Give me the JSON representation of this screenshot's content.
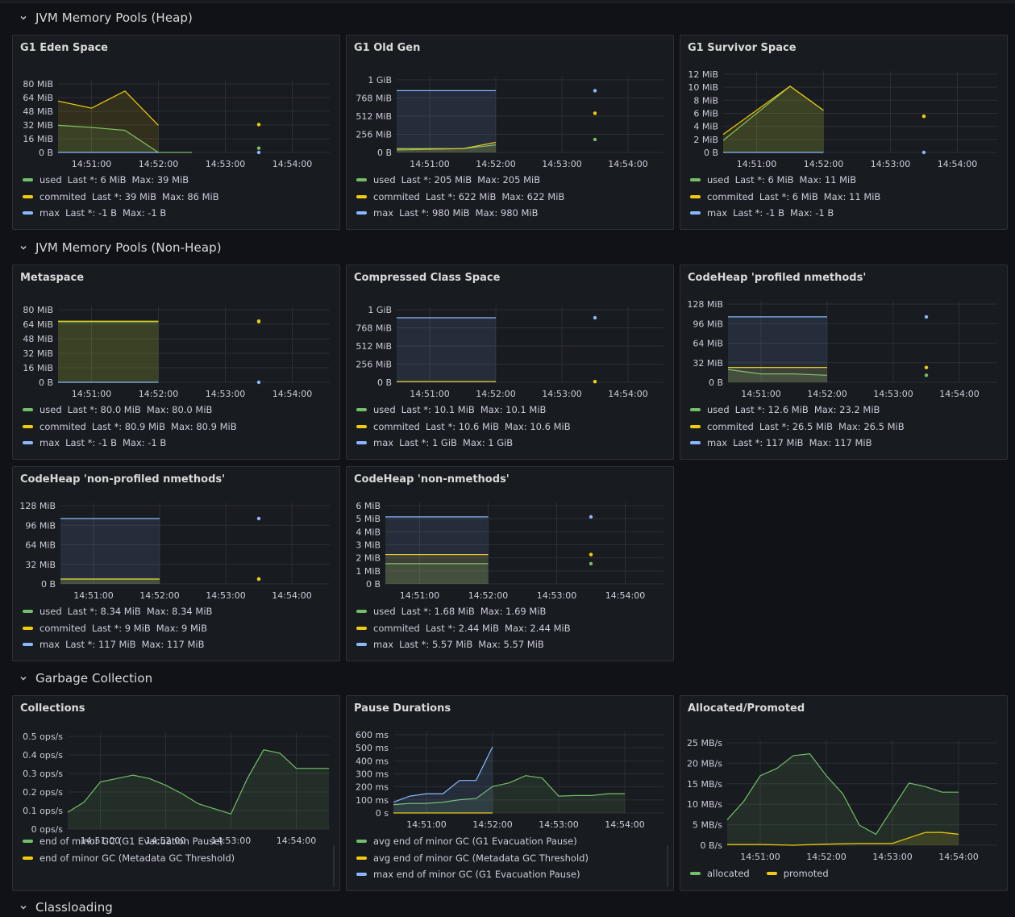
{
  "colors": {
    "used": "#73bf69",
    "commited": "#f2cc0c",
    "max": "#8ab8ff",
    "grid": "#2b2e33",
    "axis": "#ccccdc",
    "bg": "#181b1f"
  },
  "rows": {
    "heap": "JVM Memory Pools (Heap)",
    "nonheap": "JVM Memory Pools (Non-Heap)",
    "gc": "Garbage Collection",
    "classloading": "Classloading"
  },
  "panels": [
    {
      "id": "eden",
      "title": "G1 Eden Space",
      "yticks": [
        "80 MiB",
        "64 MiB",
        "48 MiB",
        "32 MiB",
        "16 MiB",
        "0 B"
      ],
      "legend": [
        {
          "name": "used",
          "stat": "Last *: 6 MiB",
          "max": "Max: 39 MiB"
        },
        {
          "name": "commited",
          "stat": "Last *: 39 MiB",
          "max": "Max: 86 MiB"
        },
        {
          "name": "max",
          "stat": "Last *: -1 B",
          "max": "Max: -1 B"
        }
      ]
    },
    {
      "id": "oldgen",
      "title": "G1 Old Gen",
      "yticks": [
        "1 GiB",
        "768 MiB",
        "512 MiB",
        "256 MiB",
        "0 B"
      ],
      "legend": [
        {
          "name": "used",
          "stat": "Last *: 205 MiB",
          "max": "Max: 205 MiB"
        },
        {
          "name": "commited",
          "stat": "Last *: 622 MiB",
          "max": "Max: 622 MiB"
        },
        {
          "name": "max",
          "stat": "Last *: 980 MiB",
          "max": "Max: 980 MiB"
        }
      ]
    },
    {
      "id": "survivor",
      "title": "G1 Survivor Space",
      "yticks": [
        "12 MiB",
        "10 MiB",
        "8 MiB",
        "6 MiB",
        "4 MiB",
        "2 MiB",
        "0 B"
      ],
      "legend": [
        {
          "name": "used",
          "stat": "Last *: 6 MiB",
          "max": "Max: 11 MiB"
        },
        {
          "name": "commited",
          "stat": "Last *: 6 MiB",
          "max": "Max: 11 MiB"
        },
        {
          "name": "max",
          "stat": "Last *: -1 B",
          "max": "Max: -1 B"
        }
      ]
    },
    {
      "id": "metaspace",
      "title": "Metaspace",
      "yticks": [
        "80 MiB",
        "64 MiB",
        "48 MiB",
        "32 MiB",
        "16 MiB",
        "0 B"
      ],
      "legend": [
        {
          "name": "used",
          "stat": "Last *: 80.0 MiB",
          "max": "Max: 80.0 MiB"
        },
        {
          "name": "commited",
          "stat": "Last *: 80.9 MiB",
          "max": "Max: 80.9 MiB"
        },
        {
          "name": "max",
          "stat": "Last *: -1 B",
          "max": "Max: -1 B"
        }
      ]
    },
    {
      "id": "ccs",
      "title": "Compressed Class Space",
      "yticks": [
        "1 GiB",
        "768 MiB",
        "512 MiB",
        "256 MiB",
        "0 B"
      ],
      "legend": [
        {
          "name": "used",
          "stat": "Last *: 10.1 MiB",
          "max": "Max: 10.1 MiB"
        },
        {
          "name": "commited",
          "stat": "Last *: 10.6 MiB",
          "max": "Max: 10.6 MiB"
        },
        {
          "name": "max",
          "stat": "Last *: 1 GiB",
          "max": "Max: 1 GiB"
        }
      ]
    },
    {
      "id": "profiled",
      "title": "CodeHeap 'profiled nmethods'",
      "yticks": [
        "128 MiB",
        "96 MiB",
        "64 MiB",
        "32 MiB",
        "0 B"
      ],
      "legend": [
        {
          "name": "used",
          "stat": "Last *: 12.6 MiB",
          "max": "Max: 23.2 MiB"
        },
        {
          "name": "commited",
          "stat": "Last *: 26.5 MiB",
          "max": "Max: 26.5 MiB"
        },
        {
          "name": "max",
          "stat": "Last *: 117 MiB",
          "max": "Max: 117 MiB"
        }
      ]
    },
    {
      "id": "nonprofiled",
      "title": "CodeHeap 'non-profiled nmethods'",
      "yticks": [
        "128 MiB",
        "96 MiB",
        "64 MiB",
        "32 MiB",
        "0 B"
      ],
      "legend": [
        {
          "name": "used",
          "stat": "Last *: 8.34 MiB",
          "max": "Max: 8.34 MiB"
        },
        {
          "name": "commited",
          "stat": "Last *: 9 MiB",
          "max": "Max: 9 MiB"
        },
        {
          "name": "max",
          "stat": "Last *: 117 MiB",
          "max": "Max: 117 MiB"
        }
      ]
    },
    {
      "id": "nonnmethods",
      "title": "CodeHeap 'non-nmethods'",
      "yticks": [
        "6 MiB",
        "5 MiB",
        "4 MiB",
        "3 MiB",
        "2 MiB",
        "1 MiB",
        "0 B"
      ],
      "legend": [
        {
          "name": "used",
          "stat": "Last *: 1.68 MiB",
          "max": "Max: 1.69 MiB"
        },
        {
          "name": "commited",
          "stat": "Last *: 2.44 MiB",
          "max": "Max: 2.44 MiB"
        },
        {
          "name": "max",
          "stat": "Last *: 5.57 MiB",
          "max": "Max: 5.57 MiB"
        }
      ]
    },
    {
      "id": "collections",
      "title": "Collections",
      "yticks": [
        "0.5 ops/s",
        "0.4 ops/s",
        "0.3 ops/s",
        "0.2 ops/s",
        "0.1 ops/s",
        "0 ops/s"
      ],
      "legend": [
        {
          "name": "end of minor GC (G1 Evacuation Pause)"
        },
        {
          "name": "end of minor GC (Metadata GC Threshold)"
        }
      ]
    },
    {
      "id": "pause",
      "title": "Pause Durations",
      "yticks": [
        "600 ms",
        "500 ms",
        "400 ms",
        "300 ms",
        "200 ms",
        "100 ms",
        "0 s"
      ],
      "legend": [
        {
          "name": "avg end of minor GC (G1 Evacuation Pause)"
        },
        {
          "name": "avg end of minor GC (Metadata GC Threshold)"
        },
        {
          "name": "max end of minor GC (G1 Evacuation Pause)"
        }
      ]
    },
    {
      "id": "allocated",
      "title": "Allocated/Promoted",
      "yticks": [
        "25 MB/s",
        "20 MB/s",
        "15 MB/s",
        "10 MB/s",
        "5 MB/s",
        "0 B/s"
      ],
      "legend": [
        {
          "name": "allocated"
        },
        {
          "name": "promoted"
        }
      ]
    }
  ],
  "xticks": [
    "14:51:00",
    "14:52:00",
    "14:53:00",
    "14:54:00"
  ],
  "chart_data": [
    {
      "id": "eden",
      "type": "line",
      "x_minutes": [
        0,
        0.5,
        1,
        1.5,
        2,
        3
      ],
      "ylim": [
        0,
        96
      ],
      "series": [
        {
          "name": "used",
          "x": [
            0,
            0.5,
            1,
            1.5,
            2,
            3
          ],
          "values": [
            38,
            35,
            31,
            0,
            0,
            6
          ]
        },
        {
          "name": "commited",
          "x": [
            0,
            0.5,
            1,
            1.5,
            3
          ],
          "values": [
            72,
            62,
            86,
            38,
            39
          ]
        },
        {
          "name": "max",
          "x": [
            0,
            1.5,
            3
          ],
          "values": [
            0,
            0,
            0
          ]
        }
      ]
    },
    {
      "id": "oldgen",
      "type": "line",
      "ylim": [
        0,
        1152
      ],
      "series": [
        {
          "name": "used",
          "x": [
            0,
            1,
            1.5,
            3
          ],
          "values": [
            40,
            60,
            120,
            205
          ]
        },
        {
          "name": "commited",
          "x": [
            0,
            1,
            1.5,
            3
          ],
          "values": [
            60,
            60,
            160,
            622
          ]
        },
        {
          "name": "max",
          "x": [
            0,
            1.5,
            3
          ],
          "values": [
            980,
            980,
            980
          ]
        }
      ]
    },
    {
      "id": "survivor",
      "type": "line",
      "ylim": [
        0,
        13
      ],
      "series": [
        {
          "name": "used",
          "x": [
            0,
            1,
            1.5,
            3
          ],
          "values": [
            2,
            11,
            7,
            6
          ]
        },
        {
          "name": "commited",
          "x": [
            0,
            1,
            1.5,
            3
          ],
          "values": [
            3,
            11,
            7,
            6
          ]
        },
        {
          "name": "max",
          "x": [
            0,
            1.5,
            3
          ],
          "values": [
            0,
            0,
            0
          ]
        }
      ]
    },
    {
      "id": "metaspace",
      "type": "line",
      "ylim": [
        0,
        96
      ],
      "series": [
        {
          "name": "used",
          "x": [
            0,
            1.5,
            3
          ],
          "values": [
            80,
            80,
            80
          ]
        },
        {
          "name": "commited",
          "x": [
            0,
            1.5,
            3
          ],
          "values": [
            80.9,
            80.9,
            80.9
          ]
        },
        {
          "name": "max",
          "x": [
            0,
            1.5,
            3
          ],
          "values": [
            0,
            0,
            0
          ]
        }
      ]
    },
    {
      "id": "ccs",
      "type": "line",
      "ylim": [
        0,
        1152
      ],
      "series": [
        {
          "name": "used",
          "x": [
            0,
            1.5,
            3
          ],
          "values": [
            10.1,
            10.1,
            10.1
          ]
        },
        {
          "name": "commited",
          "x": [
            0,
            1.5,
            3
          ],
          "values": [
            10.6,
            10.6,
            10.6
          ]
        },
        {
          "name": "max",
          "x": [
            0,
            1.5,
            3
          ],
          "values": [
            1024,
            1024,
            1024
          ]
        }
      ]
    },
    {
      "id": "profiled",
      "type": "line",
      "ylim": [
        0,
        140
      ],
      "series": [
        {
          "name": "used",
          "x": [
            0,
            0.5,
            1,
            1.5,
            3
          ],
          "values": [
            23,
            15,
            15,
            12.6,
            12.6
          ]
        },
        {
          "name": "commited",
          "x": [
            0,
            1.5,
            3
          ],
          "values": [
            26.5,
            26.5,
            26.5
          ]
        },
        {
          "name": "max",
          "x": [
            0,
            1.5,
            3
          ],
          "values": [
            117,
            117,
            117
          ]
        }
      ]
    },
    {
      "id": "nonprofiled",
      "type": "line",
      "ylim": [
        0,
        140
      ],
      "series": [
        {
          "name": "used",
          "x": [
            0,
            1.5,
            3
          ],
          "values": [
            8.34,
            8.34,
            8.34
          ]
        },
        {
          "name": "commited",
          "x": [
            0,
            1.5,
            3
          ],
          "values": [
            9,
            9,
            9
          ]
        },
        {
          "name": "max",
          "x": [
            0,
            1.5,
            3
          ],
          "values": [
            117,
            117,
            117
          ]
        }
      ]
    },
    {
      "id": "nonnmethods",
      "type": "line",
      "ylim": [
        0,
        6.5
      ],
      "series": [
        {
          "name": "used",
          "x": [
            0,
            1.5,
            3
          ],
          "values": [
            1.68,
            1.68,
            1.68
          ]
        },
        {
          "name": "commited",
          "x": [
            0,
            1.5,
            3
          ],
          "values": [
            2.44,
            2.44,
            2.44
          ]
        },
        {
          "name": "max",
          "x": [
            0,
            1.5,
            3
          ],
          "values": [
            5.57,
            5.57,
            5.57
          ]
        }
      ]
    },
    {
      "id": "collections",
      "type": "line",
      "ylim": [
        0,
        0.55
      ],
      "series": [
        {
          "name": "end of minor GC (G1 Evacuation Pause)",
          "x": [
            0,
            0.25,
            0.5,
            0.75,
            1,
            1.25,
            1.5,
            1.75,
            2,
            2.25,
            2.5,
            2.75,
            3,
            3.25,
            3.5,
            3.75,
            4
          ],
          "values": [
            0.1,
            0.16,
            0.28,
            0.3,
            0.32,
            0.3,
            0.26,
            0.21,
            0.15,
            0.12,
            0.09,
            0.3,
            0.47,
            0.45,
            0.36,
            0.36,
            0.36
          ]
        },
        {
          "name": "end of minor GC (Metadata GC Threshold)",
          "x": [],
          "values": []
        }
      ]
    },
    {
      "id": "pause",
      "type": "line",
      "ylim": [
        0,
        650
      ],
      "series": [
        {
          "name": "avg end of minor GC (G1 Evacuation Pause)",
          "x": [
            0,
            0.25,
            0.5,
            0.75,
            1,
            1.25,
            1.5,
            1.75,
            2,
            2.25,
            2.5,
            2.75,
            3,
            3.25,
            3.5
          ],
          "values": [
            70,
            80,
            80,
            90,
            110,
            120,
            220,
            250,
            310,
            290,
            140,
            145,
            145,
            160,
            160
          ]
        },
        {
          "name": "avg end of minor GC (Metadata GC Threshold)",
          "x": [
            0,
            1.5
          ],
          "values": [
            0,
            0
          ]
        },
        {
          "name": "max end of minor GC (G1 Evacuation Pause)",
          "x": [
            0,
            0.25,
            0.5,
            0.75,
            1,
            1.25,
            1.5
          ],
          "values": [
            90,
            140,
            160,
            160,
            270,
            270,
            550
          ]
        }
      ]
    },
    {
      "id": "allocated",
      "type": "line",
      "ylim": [
        0,
        28
      ],
      "series": [
        {
          "name": "allocated",
          "x": [
            0,
            0.25,
            0.5,
            0.75,
            1,
            1.25,
            1.5,
            1.75,
            2,
            2.25,
            2.5,
            2.75,
            3,
            3.25,
            3.5
          ],
          "values": [
            7,
            12,
            19,
            21,
            24.5,
            25,
            19,
            14,
            5.5,
            3,
            10,
            17,
            16,
            14.5,
            14.5
          ]
        },
        {
          "name": "promoted",
          "x": [
            0,
            0.5,
            1,
            1.5,
            2,
            2.5,
            3,
            3.25,
            3.5
          ],
          "values": [
            0.2,
            0.2,
            0,
            0.3,
            0.5,
            0.5,
            3.5,
            3.5,
            3
          ]
        }
      ]
    }
  ]
}
